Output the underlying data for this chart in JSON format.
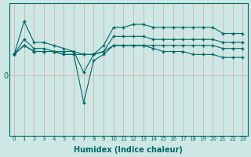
{
  "background_color": "#cde8e4",
  "grid_color": "#d4b8b8",
  "line_color": "#006666",
  "xlabel": "Humidex (Indice chaleur)",
  "x_ticks": [
    0,
    1,
    2,
    3,
    4,
    5,
    6,
    7,
    8,
    9,
    10,
    11,
    12,
    13,
    14,
    15,
    16,
    17,
    18,
    19,
    20,
    21,
    22,
    23
  ],
  "line1": [
    3.5,
    9.0,
    5.5,
    5.5,
    5.0,
    4.5,
    4.0,
    0.5,
    3.5,
    5.0,
    8.0,
    8.0,
    8.5,
    8.5,
    8.0,
    8.0,
    8.0,
    8.0,
    8.0,
    8.0,
    8.0,
    7.0,
    7.0,
    7.0
  ],
  "line2": [
    3.5,
    6.0,
    4.5,
    4.5,
    4.0,
    4.0,
    4.0,
    3.5,
    3.5,
    4.0,
    6.5,
    6.5,
    6.5,
    6.5,
    6.0,
    6.0,
    6.0,
    6.0,
    6.0,
    6.0,
    6.0,
    5.5,
    5.5,
    5.5
  ],
  "line3": [
    3.5,
    5.0,
    4.0,
    4.0,
    4.0,
    3.5,
    3.5,
    -4.5,
    2.5,
    3.5,
    5.0,
    5.0,
    5.0,
    5.0,
    4.5,
    4.0,
    4.0,
    4.0,
    3.5,
    3.5,
    3.5,
    3.0,
    3.0,
    3.0
  ],
  "line4": [
    3.5,
    5.0,
    4.0,
    4.0,
    4.0,
    3.5,
    3.5,
    3.5,
    3.5,
    4.0,
    5.0,
    5.0,
    5.0,
    5.0,
    5.0,
    5.0,
    5.0,
    5.0,
    5.0,
    5.0,
    5.0,
    4.5,
    4.5,
    4.5
  ],
  "ylim": [
    -10,
    12
  ],
  "y_zero_label": "0"
}
